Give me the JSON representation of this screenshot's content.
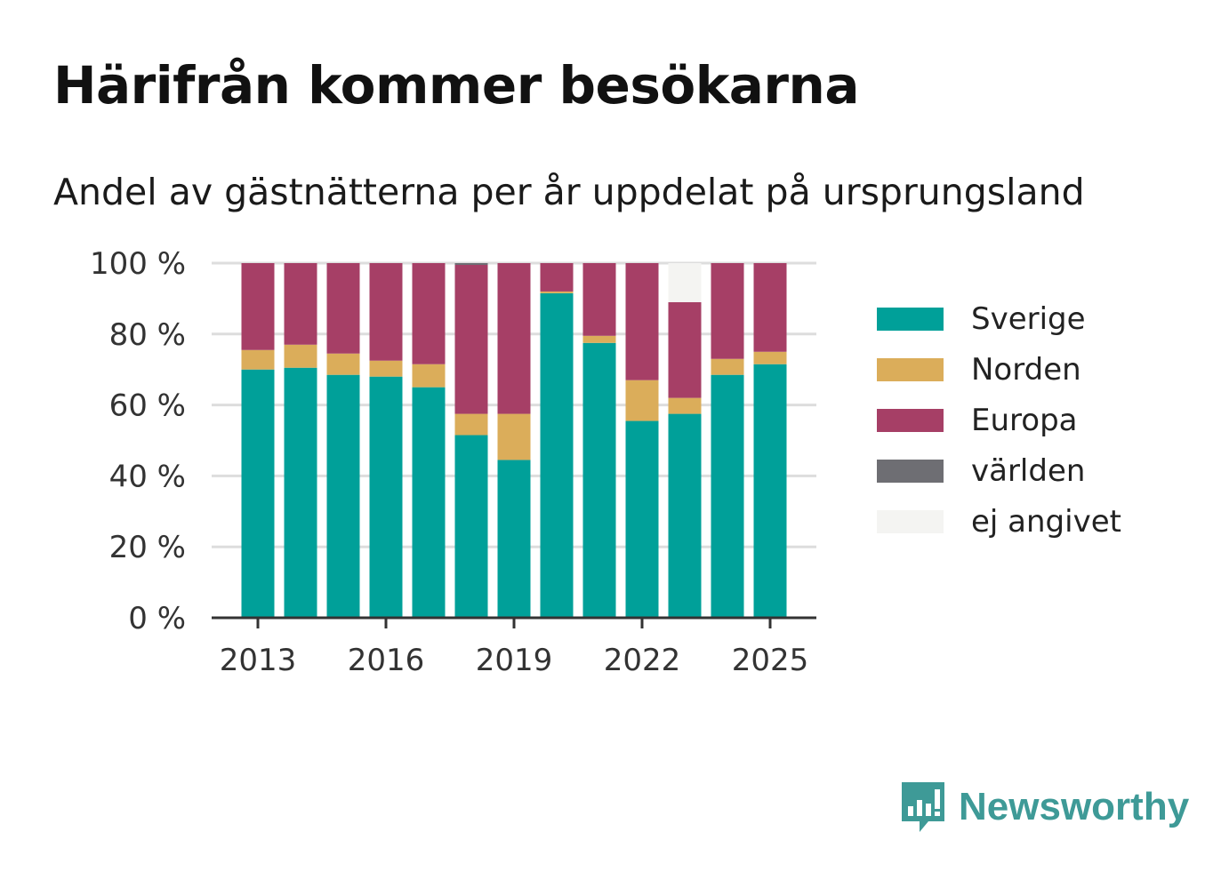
{
  "title": "Härifrån kommer besökarna",
  "subtitle": "Andel av gästnätterna per år uppdelat på ursprungsland",
  "brand": {
    "name": "Newsworthy",
    "icon": "newsworthy-logo-icon",
    "color": "#3e9a97"
  },
  "chart_data": {
    "type": "bar",
    "stacked": true,
    "x": [
      2013,
      2014,
      2015,
      2016,
      2017,
      2018,
      2019,
      2020,
      2021,
      2022,
      2023,
      2024,
      2025
    ],
    "x_tick_labels": [
      "2013",
      "2016",
      "2019",
      "2022",
      "2025"
    ],
    "x_tick_values": [
      2013,
      2016,
      2019,
      2022,
      2025
    ],
    "y_tick_labels": [
      "0 %",
      "20 %",
      "40 %",
      "60 %",
      "80 %",
      "100 %"
    ],
    "y_tick_values": [
      0,
      20,
      40,
      60,
      80,
      100
    ],
    "ylim": [
      0,
      100
    ],
    "grid": "horizontal",
    "legend_position": "right",
    "series": [
      {
        "name": "Sverige",
        "color": "#00a099",
        "values": [
          70,
          70.5,
          68.5,
          68,
          65,
          51.5,
          44.5,
          91.5,
          77.5,
          55.5,
          57.5,
          68.5,
          71.5
        ]
      },
      {
        "name": "Norden",
        "color": "#dbad5a",
        "values": [
          5.5,
          6.5,
          6,
          4.5,
          6.5,
          6,
          13,
          0.5,
          2,
          11.5,
          4.5,
          4.5,
          3.5
        ]
      },
      {
        "name": "Europa",
        "color": "#a63f66",
        "values": [
          24.5,
          23,
          25.5,
          27.5,
          28.5,
          42,
          42.5,
          8,
          20.5,
          33,
          27,
          27,
          25
        ]
      },
      {
        "name": "världen",
        "color": "#6e6e73",
        "values": [
          0,
          0,
          0,
          0,
          0,
          0.5,
          0,
          0,
          0,
          0,
          0,
          0,
          0
        ]
      },
      {
        "name": "ej angivet",
        "color": "#f4f4f2",
        "values": [
          0,
          0,
          0,
          0,
          0,
          0,
          0,
          0,
          0,
          0,
          11,
          0,
          0
        ]
      }
    ]
  }
}
